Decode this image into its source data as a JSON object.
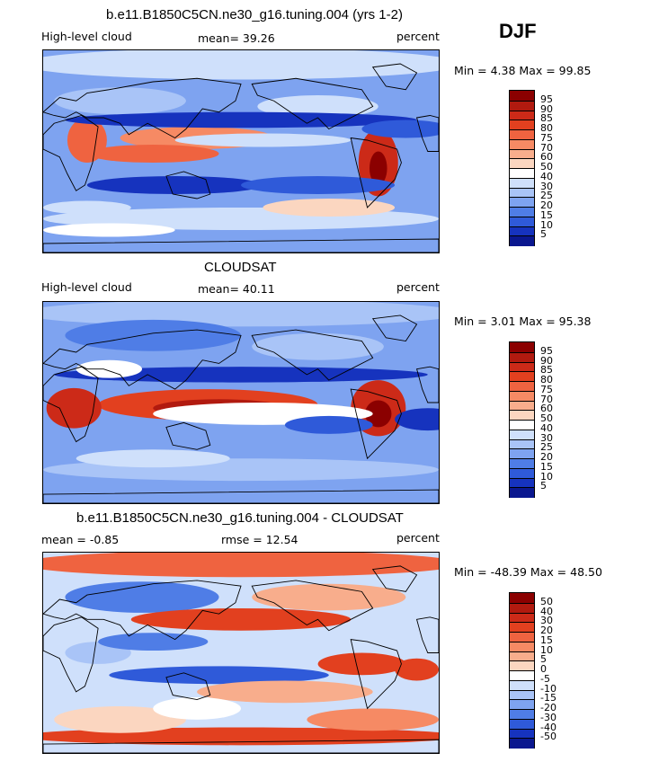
{
  "season": "DJF",
  "panels": [
    {
      "title": "b.e11.B1850C5CN.ne30_g16.tuning.004 (yrs 1-2)",
      "left_label": "High-level cloud",
      "center_label": "mean=  39.26",
      "right_label": "percent",
      "range_label": "Min =   4.38 Max =  99.85",
      "colorbar_ticks": [
        "95",
        "90",
        "85",
        "80",
        "75",
        "70",
        "60",
        "50",
        "40",
        "30",
        "25",
        "20",
        "15",
        "10",
        "5"
      ],
      "colorbar_colors": [
        "#8b0000",
        "#b11a0f",
        "#cc2a18",
        "#e2401f",
        "#ef6340",
        "#f68a64",
        "#f8ad8c",
        "#fbd6c0",
        "#ffffff",
        "#cfe0fb",
        "#a9c4f7",
        "#7ea3f0",
        "#4f7de6",
        "#2f5ad9",
        "#1633be",
        "#0a178f"
      ],
      "data_name": "model"
    },
    {
      "title": "CLOUDSAT",
      "left_label": "High-level cloud",
      "center_label": "mean=  40.11",
      "right_label": "percent",
      "range_label": "Min =   3.01 Max =  95.38",
      "colorbar_ticks": [
        "95",
        "90",
        "85",
        "80",
        "75",
        "70",
        "60",
        "50",
        "40",
        "30",
        "25",
        "20",
        "15",
        "10",
        "5"
      ],
      "colorbar_colors": [
        "#8b0000",
        "#b11a0f",
        "#cc2a18",
        "#e2401f",
        "#ef6340",
        "#f68a64",
        "#f8ad8c",
        "#fbd6c0",
        "#ffffff",
        "#cfe0fb",
        "#a9c4f7",
        "#7ea3f0",
        "#4f7de6",
        "#2f5ad9",
        "#1633be",
        "#0a178f"
      ],
      "data_name": "obs"
    },
    {
      "title": "b.e11.B1850C5CN.ne30_g16.tuning.004 - CLOUDSAT",
      "left_label": "mean =  -0.85",
      "center_label": "rmse =  12.54",
      "right_label": "percent",
      "range_label": "Min = -48.39 Max =  48.50",
      "colorbar_ticks": [
        "50",
        "40",
        "30",
        "20",
        "15",
        "10",
        "5",
        "0",
        "-5",
        "-10",
        "-15",
        "-20",
        "-30",
        "-40",
        "-50"
      ],
      "colorbar_colors": [
        "#8b0000",
        "#b11a0f",
        "#cc2a18",
        "#e2401f",
        "#ef6340",
        "#f68a64",
        "#f8ad8c",
        "#fbd6c0",
        "#ffffff",
        "#cfe0fb",
        "#a9c4f7",
        "#7ea3f0",
        "#4f7de6",
        "#2f5ad9",
        "#1633be",
        "#0a178f"
      ],
      "data_name": "diff"
    }
  ]
}
